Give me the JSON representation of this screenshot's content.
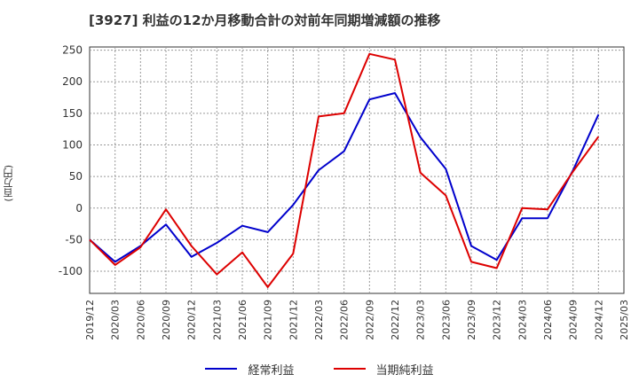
{
  "chart_data": {
    "type": "line",
    "title": "[3927]  利益の12か月移動合計の対前年同期増減額の推移",
    "ylabel": "(百万円)",
    "xlabel": "",
    "ylim": [
      -135,
      255
    ],
    "yticks": [
      250,
      200,
      150,
      100,
      50,
      0,
      -50,
      -100
    ],
    "categories": [
      "2019/12",
      "2020/03",
      "2020/06",
      "2020/09",
      "2020/12",
      "2021/03",
      "2021/06",
      "2021/09",
      "2021/12",
      "2022/03",
      "2022/06",
      "2022/09",
      "2022/12",
      "2023/03",
      "2023/06",
      "2023/09",
      "2023/12",
      "2024/03",
      "2024/06",
      "2024/09",
      "2024/12",
      "2025/03"
    ],
    "grid": true,
    "legend_position": "bottom-center",
    "series": [
      {
        "name": "経常利益",
        "color": "#0000cc",
        "values": [
          -50,
          -85,
          -60,
          -26,
          -77,
          -55,
          -28,
          -38,
          5,
          60,
          90,
          172,
          182,
          112,
          62,
          -60,
          -82,
          -16,
          -16,
          60,
          148,
          null
        ]
      },
      {
        "name": "当期純利益",
        "color": "#dd0000",
        "values": [
          -50,
          -90,
          -62,
          -2,
          -60,
          -105,
          -70,
          -125,
          -72,
          145,
          150,
          244,
          235,
          56,
          20,
          -85,
          -95,
          0,
          -2,
          58,
          113,
          null
        ]
      }
    ]
  }
}
